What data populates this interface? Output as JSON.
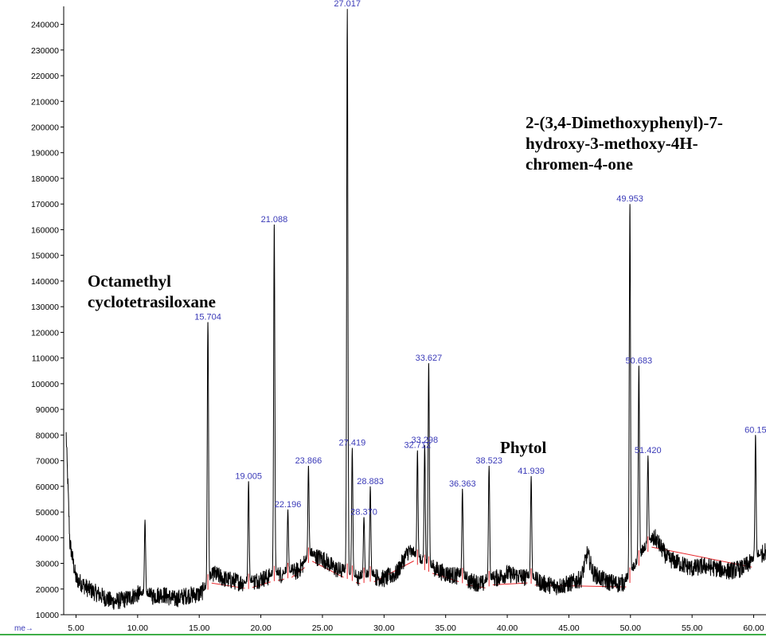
{
  "chart_data": {
    "type": "line",
    "xlim": [
      4.0,
      61.0
    ],
    "ylim": [
      10000,
      247000
    ],
    "x_unit_label": "me",
    "y_ticks": [
      10000,
      20000,
      30000,
      40000,
      50000,
      60000,
      70000,
      80000,
      90000,
      100000,
      110000,
      120000,
      130000,
      140000,
      150000,
      160000,
      170000,
      180000,
      190000,
      200000,
      210000,
      220000,
      230000,
      240000
    ],
    "x_ticks": [
      "5.00",
      "10.00",
      "15.00",
      "20.00",
      "25.00",
      "30.00",
      "35.00",
      "40.00",
      "45.00",
      "50.00",
      "55.00",
      "60.00"
    ],
    "x_tick_values": [
      5,
      10,
      15,
      20,
      25,
      30,
      35,
      40,
      45,
      50,
      55,
      60
    ],
    "baseline": [
      [
        4.2,
        80000
      ],
      [
        4.5,
        38000
      ],
      [
        5,
        24000
      ],
      [
        6,
        20000
      ],
      [
        7,
        17500
      ],
      [
        8,
        15000
      ],
      [
        9,
        16000
      ],
      [
        10,
        18000
      ],
      [
        11,
        17000
      ],
      [
        12,
        18000
      ],
      [
        13,
        16000
      ],
      [
        14,
        17500
      ],
      [
        15,
        18000
      ],
      [
        15.5,
        20000
      ],
      [
        16.2,
        26000
      ],
      [
        17,
        24000
      ],
      [
        18,
        23000
      ],
      [
        19,
        22000
      ],
      [
        20,
        24000
      ],
      [
        21,
        25000
      ],
      [
        22,
        26000
      ],
      [
        23,
        27000
      ],
      [
        24,
        33000
      ],
      [
        25,
        32000
      ],
      [
        26,
        28000
      ],
      [
        27,
        26000
      ],
      [
        28,
        24000
      ],
      [
        29,
        25000
      ],
      [
        30,
        24000
      ],
      [
        31,
        26000
      ],
      [
        32,
        35000
      ],
      [
        33,
        30000
      ],
      [
        34,
        28000
      ],
      [
        35,
        26000
      ],
      [
        36,
        25000
      ],
      [
        37,
        23000
      ],
      [
        38,
        22000
      ],
      [
        39,
        24000
      ],
      [
        40,
        26000
      ],
      [
        41,
        25000
      ],
      [
        42,
        24000
      ],
      [
        43,
        22000
      ],
      [
        44,
        21000
      ],
      [
        45,
        22000
      ],
      [
        46,
        24000
      ],
      [
        46.5,
        34000
      ],
      [
        47,
        26000
      ],
      [
        48,
        23000
      ],
      [
        49,
        22000
      ],
      [
        49.8,
        23000
      ],
      [
        51,
        34000
      ],
      [
        52,
        40000
      ],
      [
        53,
        32000
      ],
      [
        54,
        30000
      ],
      [
        55,
        28000
      ],
      [
        56,
        29000
      ],
      [
        57,
        28000
      ],
      [
        58,
        27000
      ],
      [
        59,
        28000
      ],
      [
        60,
        31000
      ],
      [
        61,
        35000
      ]
    ],
    "peaks": [
      {
        "x": 10.6,
        "y": 47000,
        "label": ""
      },
      {
        "x": 15.704,
        "y": 124000,
        "label": "15.704"
      },
      {
        "x": 19.005,
        "y": 62000,
        "label": "19.005"
      },
      {
        "x": 21.088,
        "y": 162000,
        "label": "21.088"
      },
      {
        "x": 22.196,
        "y": 51000,
        "label": "22.196"
      },
      {
        "x": 23.866,
        "y": 68000,
        "label": "23.866"
      },
      {
        "x": 27.017,
        "y": 246000,
        "label": "27.017"
      },
      {
        "x": 27.419,
        "y": 75000,
        "label": "27.419"
      },
      {
        "x": 28.37,
        "y": 48000,
        "label": "28.370"
      },
      {
        "x": 28.883,
        "y": 60000,
        "label": "28.883"
      },
      {
        "x": 32.712,
        "y": 74000,
        "label": "32.712"
      },
      {
        "x": 33.298,
        "y": 76000,
        "label": "33.298"
      },
      {
        "x": 33.627,
        "y": 108000,
        "label": "33.627"
      },
      {
        "x": 36.363,
        "y": 59000,
        "label": "36.363"
      },
      {
        "x": 38.523,
        "y": 68000,
        "label": "38.523"
      },
      {
        "x": 41.939,
        "y": 64000,
        "label": "41.939"
      },
      {
        "x": 49.953,
        "y": 170000,
        "label": "49.953"
      },
      {
        "x": 50.683,
        "y": 107000,
        "label": "50.683"
      },
      {
        "x": 51.42,
        "y": 72000,
        "label": "51.420"
      },
      {
        "x": 60.15,
        "y": 80000,
        "label": "60.15"
      }
    ],
    "annotations": [
      {
        "lines": [
          "Octamethyl",
          "cyclotetrasiloxane"
        ]
      },
      {
        "lines": [
          "2-(3,4-Dimethoxyphenyl)-7-",
          "hydroxy-3-methoxy-4H-",
          "chromen-4-one"
        ]
      },
      {
        "lines": [
          "Phytol"
        ]
      }
    ],
    "colors": {
      "signal": "#000000",
      "peak_label": "#3a3ab8",
      "integration": "#e8262b",
      "axis": "#000000",
      "x_axis_bar": "#3fae49"
    }
  }
}
